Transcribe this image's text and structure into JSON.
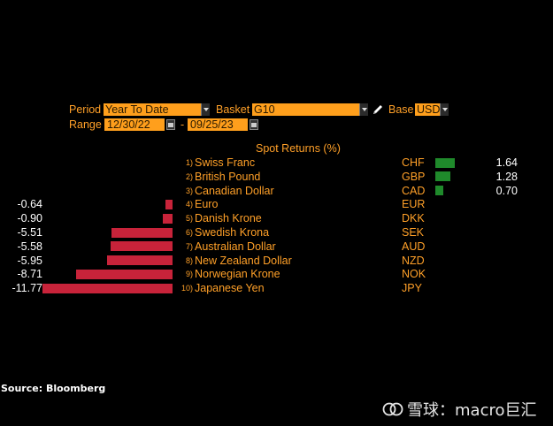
{
  "controls": {
    "period_label": "Period",
    "period_value": "Year To Date",
    "basket_label": "Basket",
    "basket_value": "G10",
    "base_label": "Base",
    "base_value": "USD",
    "range_label": "Range",
    "range_start": "12/30/22",
    "range_separator": "-",
    "range_end": "09/25/23"
  },
  "chart_data": {
    "type": "bar",
    "title": "Spot Returns (%)",
    "categories": [
      "Swiss Franc",
      "British Pound",
      "Canadian Dollar",
      "Euro",
      "Danish Krone",
      "Swedish Krona",
      "Australian Dollar",
      "New Zealand Dollar",
      "Norwegian Krone",
      "Japanese Yen"
    ],
    "ranks": [
      "1)",
      "2)",
      "3)",
      "4)",
      "5)",
      "6)",
      "7)",
      "8)",
      "9)",
      "10)"
    ],
    "codes": [
      "CHF",
      "GBP",
      "CAD",
      "EUR",
      "DKK",
      "SEK",
      "AUD",
      "NZD",
      "NOK",
      "JPY"
    ],
    "values": [
      1.64,
      1.28,
      0.7,
      -0.64,
      -0.9,
      -5.51,
      -5.58,
      -5.95,
      -8.71,
      -11.77
    ],
    "labels": [
      "1.64",
      "1.28",
      "0.70",
      "-0.64",
      "-0.90",
      "-5.51",
      "-5.58",
      "-5.95",
      "-8.71",
      "-11.77"
    ],
    "positive_color": "#1f8a2b",
    "negative_color": "#c8233a"
  },
  "source": "Source: Bloomberg",
  "watermark": "雪球：macro巨汇"
}
